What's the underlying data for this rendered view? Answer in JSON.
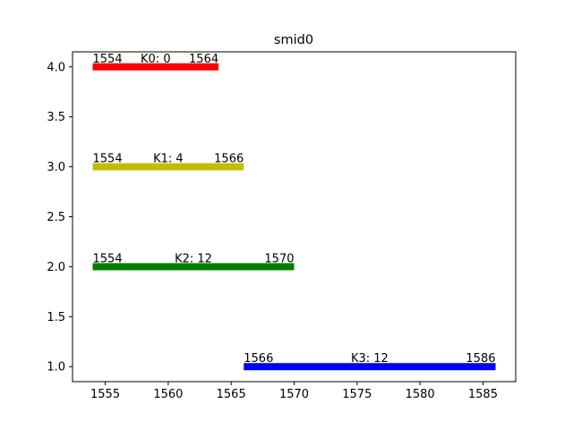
{
  "chart_data": {
    "type": "bar",
    "orientation": "horizontal-range",
    "title": "smid0",
    "xlabel": "",
    "ylabel": "",
    "xlim": [
      1552.4,
      1587.6
    ],
    "ylim": [
      0.85,
      4.15
    ],
    "xticks": [
      1555,
      1560,
      1565,
      1570,
      1575,
      1580,
      1585
    ],
    "yticks": [
      "1.0",
      "1.5",
      "2.0",
      "2.5",
      "3.0",
      "3.5",
      "4.0"
    ],
    "grid": false,
    "segments": [
      {
        "label": "K0: 0",
        "y": 4,
        "start": 1554,
        "end": 1564,
        "start_label": "1554",
        "end_label": "1564",
        "color": "#ff0000"
      },
      {
        "label": "K1: 4",
        "y": 3,
        "start": 1554,
        "end": 1566,
        "start_label": "1554",
        "end_label": "1566",
        "color": "#bfbf00"
      },
      {
        "label": "K2: 12",
        "y": 2,
        "start": 1554,
        "end": 1570,
        "start_label": "1554",
        "end_label": "1570",
        "color": "#008000"
      },
      {
        "label": "K3: 12",
        "y": 1,
        "start": 1566,
        "end": 1586,
        "start_label": "1566",
        "end_label": "1586",
        "color": "#0000ff"
      }
    ]
  }
}
